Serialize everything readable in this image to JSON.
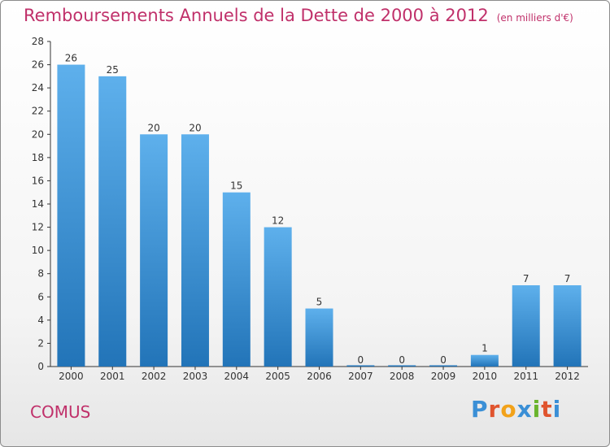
{
  "header": {
    "title": "Remboursements Annuels de la Dette de 2000 à 2012",
    "subtitle": "(en milliers d'€)"
  },
  "footer": {
    "commune": "COMUS",
    "brand": "Proxiti"
  },
  "colors": {
    "title": "#c0306a",
    "bar_top": "#5eb0ec",
    "bar_bottom": "#2274b8",
    "axis": "#333333"
  },
  "chart_data": {
    "type": "bar",
    "title": "Remboursements Annuels de la Dette de 2000 à 2012",
    "subtitle": "(en milliers d'€)",
    "categories": [
      "2000",
      "2001",
      "2002",
      "2003",
      "2004",
      "2005",
      "2006",
      "2007",
      "2008",
      "2009",
      "2010",
      "2011",
      "2012"
    ],
    "values": [
      26,
      25,
      20,
      20,
      15,
      12,
      5,
      0,
      0,
      0,
      1,
      7,
      7
    ],
    "ylim": [
      0,
      28
    ],
    "yticks": [
      0,
      2,
      4,
      6,
      8,
      10,
      12,
      14,
      16,
      18,
      20,
      22,
      24,
      26,
      28
    ],
    "grid": false,
    "legend": "none"
  }
}
